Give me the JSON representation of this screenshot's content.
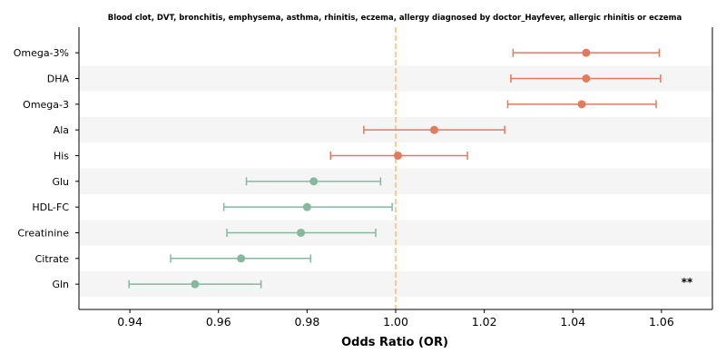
{
  "chart_data": {
    "type": "forest",
    "title": "Blood clot, DVT, bronchitis, emphysema, asthma, rhinitis, eczema, allergy diagnosed by doctor_Hayfever, allergic rhinitis or eczema",
    "xlabel": "Odds Ratio (OR)",
    "xlim": [
      0.9285,
      1.0715
    ],
    "xticks": [
      "0.94",
      "0.96",
      "0.98",
      "1.00",
      "1.02",
      "1.04",
      "1.06"
    ],
    "reference_line": 1.0,
    "grid": false,
    "row_shading": "alternating",
    "colors": {
      "positive": "#e07b5f",
      "negative": "#86b89f",
      "reference": "#f5c27a",
      "band": "#f5f5f5"
    },
    "rows": [
      {
        "label": "Omega-3%",
        "or": 1.043,
        "lower": 1.0265,
        "upper": 1.0595,
        "annotation": ""
      },
      {
        "label": "DHA",
        "or": 1.043,
        "lower": 1.026,
        "upper": 1.0598,
        "annotation": ""
      },
      {
        "label": "Omega-3",
        "or": 1.042,
        "lower": 1.0253,
        "upper": 1.0588,
        "annotation": ""
      },
      {
        "label": "Ala",
        "or": 1.0087,
        "lower": 0.9928,
        "upper": 1.0246,
        "annotation": ""
      },
      {
        "label": "His",
        "or": 1.0005,
        "lower": 0.9853,
        "upper": 1.0162,
        "annotation": ""
      },
      {
        "label": "Glu",
        "or": 0.9815,
        "lower": 0.9663,
        "upper": 0.9966,
        "annotation": ""
      },
      {
        "label": "HDL-FC",
        "or": 0.98,
        "lower": 0.9612,
        "upper": 0.9992,
        "annotation": ""
      },
      {
        "label": "Creatinine",
        "or": 0.9786,
        "lower": 0.9619,
        "upper": 0.9955,
        "annotation": ""
      },
      {
        "label": "Citrate",
        "or": 0.9651,
        "lower": 0.9492,
        "upper": 0.9808,
        "annotation": ""
      },
      {
        "label": "Gln",
        "or": 0.9547,
        "lower": 0.9398,
        "upper": 0.9696,
        "annotation": "**"
      }
    ]
  }
}
